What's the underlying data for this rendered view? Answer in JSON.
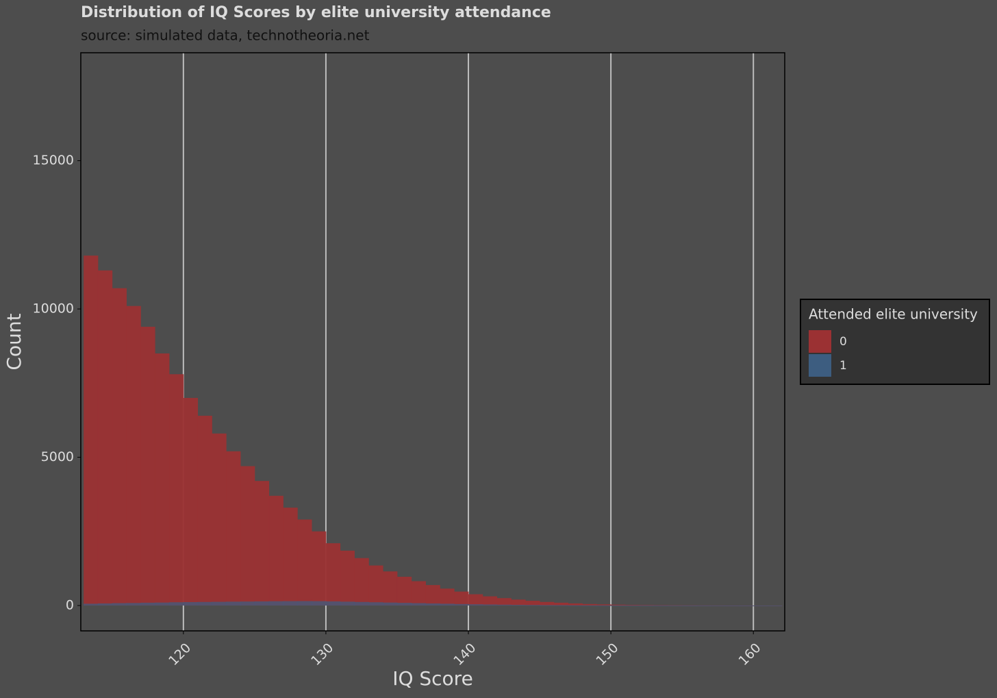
{
  "chart_data": {
    "type": "histogram",
    "title": "Distribution of IQ Scores by elite university attendance",
    "subtitle": "source: simulated data, technotheoria.net",
    "x_label": "IQ Score",
    "y_label": "Count",
    "legend_title": "Attended elite university",
    "legend_position": "right",
    "bins": [
      113,
      114,
      115,
      116,
      117,
      118,
      119,
      120,
      121,
      122,
      123,
      124,
      125,
      126,
      127,
      128,
      129,
      130,
      131,
      132,
      133,
      134,
      135,
      136,
      137,
      138,
      139,
      140,
      141,
      142,
      143,
      144,
      145,
      146,
      147,
      148,
      149,
      150,
      151,
      152,
      153,
      154,
      155,
      156,
      157,
      158,
      159,
      160,
      161,
      162
    ],
    "series": [
      {
        "name": "0",
        "color": "#9b3133",
        "values": [
          11800,
          11300,
          10700,
          10100,
          9400,
          8500,
          7800,
          7000,
          6400,
          5800,
          5200,
          4700,
          4200,
          3700,
          3300,
          2900,
          2500,
          2100,
          1850,
          1600,
          1350,
          1150,
          970,
          820,
          690,
          570,
          470,
          380,
          310,
          250,
          200,
          160,
          120,
          95,
          70,
          50,
          38,
          28,
          20,
          14,
          10,
          7,
          5,
          3,
          2,
          1,
          1,
          0,
          0
        ]
      },
      {
        "name": "1",
        "color": "#3d5d80",
        "values": [
          60,
          70,
          80,
          85,
          95,
          100,
          110,
          115,
          120,
          125,
          130,
          135,
          140,
          145,
          148,
          150,
          148,
          140,
          130,
          120,
          110,
          100,
          90,
          80,
          70,
          60,
          50,
          42,
          35,
          28,
          22,
          17,
          13,
          10,
          7,
          5,
          4,
          3,
          2,
          1,
          1,
          1,
          0,
          0,
          0,
          0,
          0,
          0,
          0
        ]
      }
    ],
    "xlim": [
      112.8,
      162.2
    ],
    "ylim": [
      -855,
      18640
    ],
    "xticks": [
      120,
      130,
      140,
      150,
      160
    ],
    "yticks": [
      0,
      5000,
      10000,
      15000
    ],
    "grid": "x"
  }
}
